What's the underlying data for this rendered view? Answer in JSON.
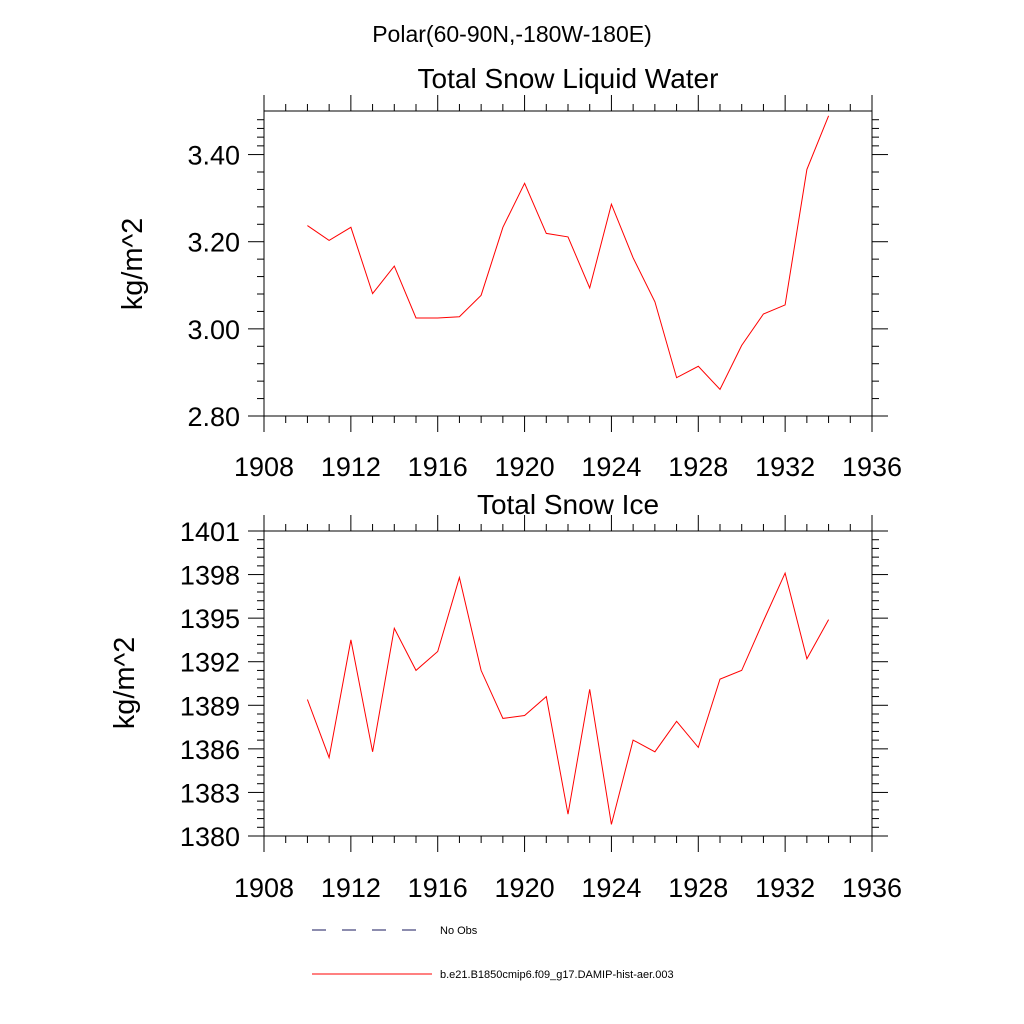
{
  "figure": {
    "super_title": "Polar(60-90N,-180W-180E)"
  },
  "legend": [
    {
      "label": "No Obs",
      "color": "#1a1a5e",
      "style": "dashed"
    },
    {
      "label": "b.e21.B1850cmip6.f09_g17.DAMIP-hist-aer.003",
      "color": "#ff0000",
      "style": "solid"
    }
  ],
  "chart_data": [
    {
      "type": "line",
      "title": "Total Snow Liquid Water",
      "xlabel": "",
      "ylabel": "kg/m^2",
      "xlim": [
        1908,
        1936
      ],
      "ylim": [
        2.8,
        3.5
      ],
      "xticks": [
        1908,
        1912,
        1916,
        1920,
        1924,
        1928,
        1932,
        1936
      ],
      "xtick_labels": [
        "1908",
        "1912",
        "1916",
        "1920",
        "1924",
        "1928",
        "1932",
        "1936"
      ],
      "yticks": [
        2.8,
        3.0,
        3.2,
        3.4
      ],
      "ytick_labels": [
        "2.80",
        "3.00",
        "3.20",
        "3.40"
      ],
      "grid": false,
      "series": [
        {
          "name": "b.e21.B1850cmip6.f09_g17.DAMIP-hist-aer.003",
          "color": "#ff0000",
          "x": [
            1910,
            1911,
            1912,
            1913,
            1914,
            1915,
            1916,
            1917,
            1918,
            1919,
            1920,
            1921,
            1922,
            1923,
            1924,
            1925,
            1926,
            1927,
            1928,
            1929,
            1930,
            1931,
            1932,
            1933,
            1934
          ],
          "y": [
            3.237,
            3.203,
            3.233,
            3.081,
            3.144,
            3.025,
            3.025,
            3.028,
            3.077,
            3.233,
            3.334,
            3.219,
            3.211,
            3.094,
            3.286,
            3.163,
            3.062,
            2.888,
            2.914,
            2.861,
            2.962,
            3.034,
            3.055,
            3.366,
            3.489
          ]
        }
      ]
    },
    {
      "type": "line",
      "title": "Total Snow Ice",
      "xlabel": "",
      "ylabel": "kg/m^2",
      "xlim": [
        1908,
        1936
      ],
      "ylim": [
        1380,
        1401
      ],
      "xticks": [
        1908,
        1912,
        1916,
        1920,
        1924,
        1928,
        1932,
        1936
      ],
      "xtick_labels": [
        "1908",
        "1912",
        "1916",
        "1920",
        "1924",
        "1928",
        "1932",
        "1936"
      ],
      "yticks": [
        1380,
        1383,
        1386,
        1389,
        1392,
        1395,
        1398,
        1401
      ],
      "ytick_labels": [
        "1380",
        "1383",
        "1386",
        "1389",
        "1392",
        "1395",
        "1398",
        "1401"
      ],
      "grid": false,
      "series": [
        {
          "name": "b.e21.B1850cmip6.f09_g17.DAMIP-hist-aer.003",
          "color": "#ff0000",
          "x": [
            1910,
            1911,
            1912,
            1913,
            1914,
            1915,
            1916,
            1917,
            1918,
            1919,
            1920,
            1921,
            1922,
            1923,
            1924,
            1925,
            1926,
            1927,
            1928,
            1929,
            1930,
            1931,
            1932,
            1933,
            1934
          ],
          "y": [
            1389.4,
            1385.4,
            1393.5,
            1385.8,
            1394.3,
            1391.4,
            1392.7,
            1397.8,
            1391.4,
            1388.1,
            1388.3,
            1389.6,
            1381.5,
            1390.1,
            1380.8,
            1386.6,
            1385.8,
            1387.9,
            1386.1,
            1390.8,
            1391.4,
            1394.8,
            1398.1,
            1392.2,
            1394.9
          ]
        }
      ]
    }
  ]
}
